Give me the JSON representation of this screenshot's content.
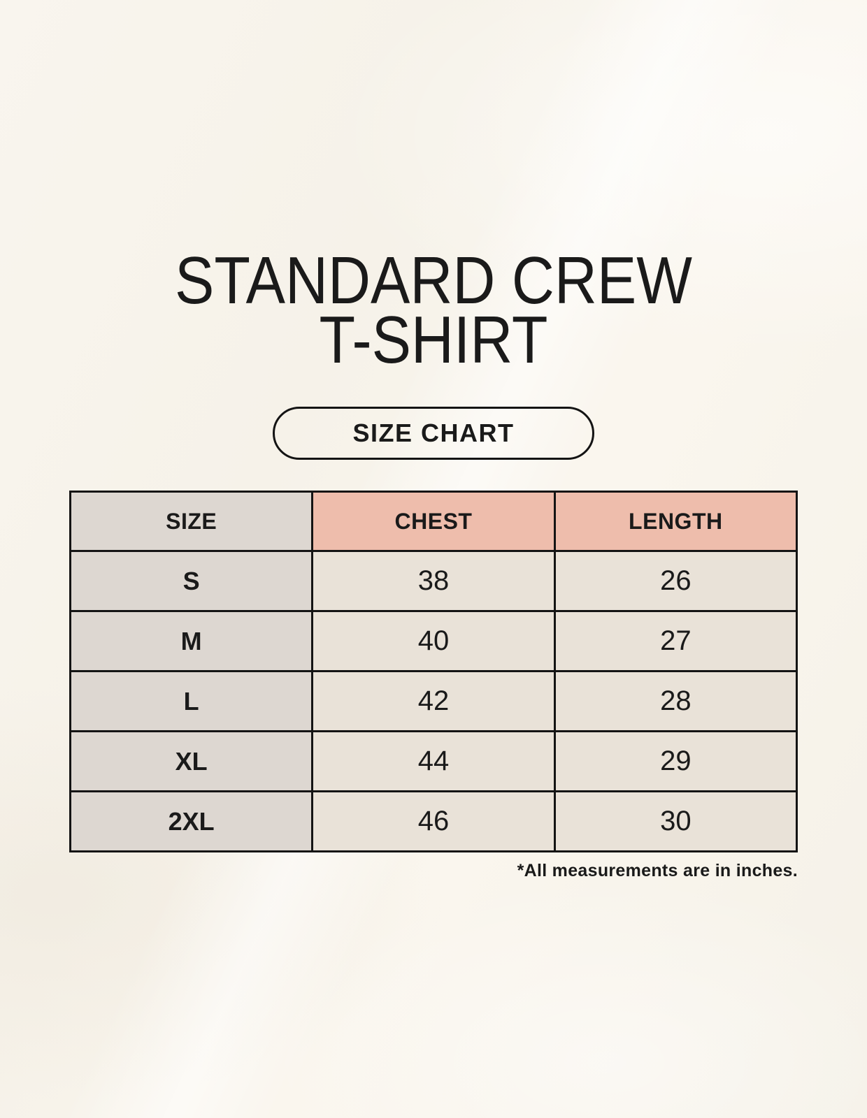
{
  "header": {
    "title_line1": "STANDARD CREW",
    "title_line2": "T-SHIRT",
    "button_label": "SIZE CHART"
  },
  "table": {
    "columns": [
      "SIZE",
      "CHEST",
      "LENGTH"
    ],
    "rows": [
      {
        "cells": [
          "S",
          "38",
          "26"
        ]
      },
      {
        "cells": [
          "M",
          "40",
          "27"
        ]
      },
      {
        "cells": [
          "L",
          "42",
          "28"
        ]
      },
      {
        "cells": [
          "XL",
          "44",
          "29"
        ]
      },
      {
        "cells": [
          "2XL",
          "46",
          "30"
        ]
      }
    ]
  },
  "footnote": "*All measurements are in inches.",
  "colors": {
    "background": "#f7f3ea",
    "measure_header_bg": "#eebdac",
    "size_col_bg": "#ddd7d1",
    "cell_bg": "#e9e2d8",
    "border": "#141414",
    "text": "#1a1a1a"
  },
  "chart_data": {
    "type": "table",
    "title": "STANDARD CREW T-SHIRT",
    "subtitle": "SIZE CHART",
    "columns": [
      "SIZE",
      "CHEST",
      "LENGTH"
    ],
    "rows": [
      [
        "S",
        38,
        26
      ],
      [
        "M",
        40,
        27
      ],
      [
        "L",
        42,
        28
      ],
      [
        "XL",
        44,
        29
      ],
      [
        "2XL",
        46,
        30
      ]
    ],
    "units": "inches",
    "note": "*All measurements are in inches."
  }
}
